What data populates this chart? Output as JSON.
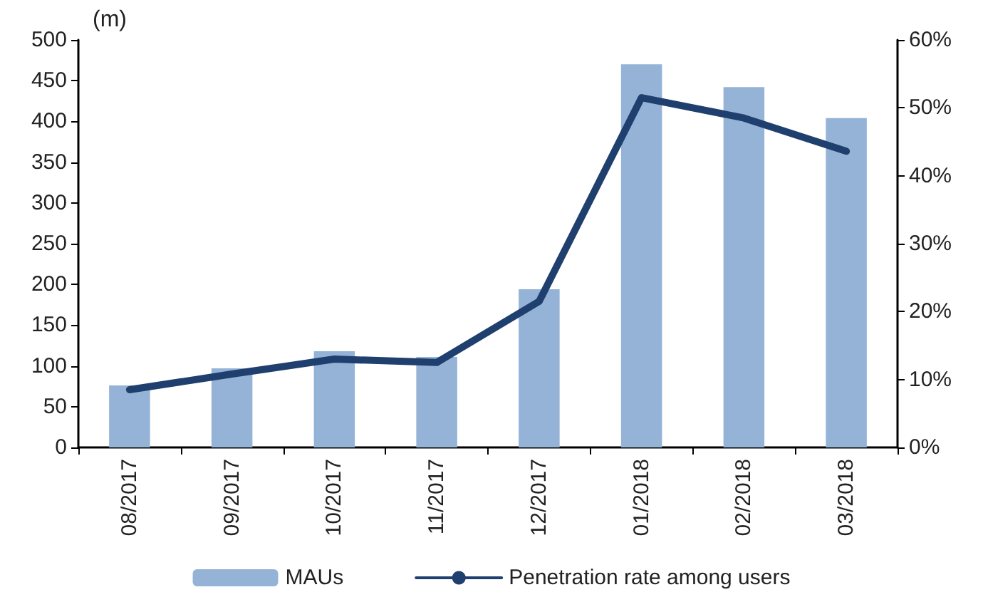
{
  "chart_data": {
    "type": "bar",
    "ylabel": "(m)",
    "categories": [
      "08/2017",
      "09/2017",
      "10/2017",
      "11/2017",
      "12/2017",
      "01/2018",
      "02/2018",
      "03/2018"
    ],
    "series": [
      {
        "name": "MAUs",
        "color": "#95b3d7",
        "values": [
          76,
          97,
          118,
          111,
          194,
          470,
          442,
          404
        ]
      },
      {
        "name": "Penetration rate among users",
        "type": "line",
        "axis": "y2",
        "color": "#1f3f6e",
        "values": [
          8.5,
          10.8,
          13,
          12.5,
          21.5,
          51.5,
          48.5,
          43.6
        ]
      }
    ],
    "ylim": [
      0,
      500
    ],
    "yticks": [
      0,
      50,
      100,
      150,
      200,
      250,
      300,
      350,
      400,
      450,
      500
    ],
    "y2lim": [
      0,
      60
    ],
    "y2ticks": [
      {
        "value": 0,
        "label": "0%"
      },
      {
        "value": 10,
        "label": "10%"
      },
      {
        "value": 20,
        "label": "20%"
      },
      {
        "value": 30,
        "label": "30%"
      },
      {
        "value": 40,
        "label": "40%"
      },
      {
        "value": 50,
        "label": "50%"
      },
      {
        "value": 60,
        "label": "60%"
      }
    ],
    "grid": false,
    "legend": "bottom",
    "marker": "none",
    "line_style": "solid"
  }
}
